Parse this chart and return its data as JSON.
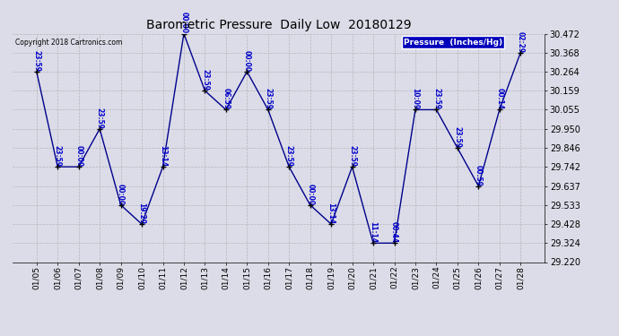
{
  "title": "Barometric Pressure  Daily Low  20180129",
  "copyright": "Copyright 2018 Cartronics.com",
  "legend_label": "Pressure  (Inches/Hg)",
  "background_color": "#dcdce8",
  "line_color": "#00008b",
  "marker_color": "#000000",
  "text_color": "#0000cc",
  "dates": [
    "01/05",
    "01/06",
    "01/07",
    "01/08",
    "01/09",
    "01/10",
    "01/11",
    "01/12",
    "01/13",
    "01/14",
    "01/15",
    "01/16",
    "01/17",
    "01/18",
    "01/19",
    "01/20",
    "01/21",
    "01/22",
    "01/23",
    "01/24",
    "01/25",
    "01/26",
    "01/27",
    "01/28"
  ],
  "values": [
    30.264,
    29.742,
    29.742,
    29.95,
    29.533,
    29.428,
    29.742,
    30.472,
    30.159,
    30.055,
    30.264,
    30.055,
    29.742,
    29.533,
    29.428,
    29.742,
    29.324,
    29.324,
    30.055,
    30.055,
    29.846,
    29.637,
    30.055,
    30.368
  ],
  "point_labels": [
    "23:59",
    "23:59",
    "00:00",
    "23:59",
    "00:00",
    "19:29",
    "13:14",
    "00:00",
    "23:59",
    "06:59",
    "00:00",
    "23:59",
    "23:59",
    "00:00",
    "13:14",
    "23:59",
    "11:14",
    "00:44",
    "10:09",
    "23:59",
    "23:59",
    "00:59",
    "00:14",
    "02:29"
  ],
  "ylim_min": 29.22,
  "ylim_max": 30.472,
  "ytick_values": [
    29.22,
    29.324,
    29.428,
    29.533,
    29.637,
    29.742,
    29.846,
    29.95,
    30.055,
    30.159,
    30.264,
    30.368,
    30.472
  ]
}
